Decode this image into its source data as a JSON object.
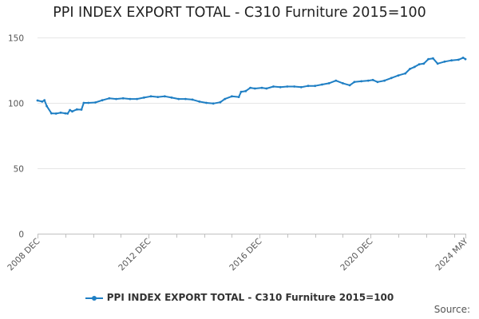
{
  "chart_data": {
    "type": "line",
    "title": "PPI INDEX EXPORT TOTAL - C310 Furniture 2015=100",
    "xlabel": "",
    "ylabel": "",
    "ylim": [
      0,
      150
    ],
    "yticks": [
      0,
      50,
      100,
      150
    ],
    "xlim": [
      "2008-12",
      "2024-05"
    ],
    "xticks": [
      {
        "label": "2008 DEC",
        "date": "2008-12"
      },
      {
        "label": "2012 DEC",
        "date": "2012-12"
      },
      {
        "label": "2016 DEC",
        "date": "2016-12"
      },
      {
        "label": "2020 DEC",
        "date": "2020-12"
      },
      {
        "label": "2024 MAY",
        "date": "2024-05"
      }
    ],
    "grid": {
      "horizontal": true,
      "vertical": false
    },
    "legend_position": "bottom",
    "series": [
      {
        "name": "PPI INDEX EXPORT TOTAL - C310 Furniture 2015=100",
        "color": "#1f7fc4",
        "points": [
          [
            "2008-12",
            101.8
          ],
          [
            "2009-02",
            101.0
          ],
          [
            "2009-03",
            102.0
          ],
          [
            "2009-04",
            97.5
          ],
          [
            "2009-06",
            92.0
          ],
          [
            "2009-08",
            91.8
          ],
          [
            "2009-10",
            92.5
          ],
          [
            "2009-12",
            92.0
          ],
          [
            "2010-01",
            91.8
          ],
          [
            "2010-02",
            94.5
          ],
          [
            "2010-03",
            93.5
          ],
          [
            "2010-05",
            95.0
          ],
          [
            "2010-07",
            94.8
          ],
          [
            "2010-08",
            100.0
          ],
          [
            "2010-10",
            100.0
          ],
          [
            "2011-01",
            100.3
          ],
          [
            "2011-04",
            102.0
          ],
          [
            "2011-07",
            103.5
          ],
          [
            "2011-10",
            103.0
          ],
          [
            "2012-01",
            103.5
          ],
          [
            "2012-04",
            103.0
          ],
          [
            "2012-07",
            103.0
          ],
          [
            "2012-10",
            104.0
          ],
          [
            "2013-01",
            105.0
          ],
          [
            "2013-04",
            104.5
          ],
          [
            "2013-07",
            105.0
          ],
          [
            "2013-10",
            104.0
          ],
          [
            "2014-01",
            103.0
          ],
          [
            "2014-04",
            103.0
          ],
          [
            "2014-07",
            102.5
          ],
          [
            "2014-10",
            101.0
          ],
          [
            "2015-01",
            100.0
          ],
          [
            "2015-04",
            99.5
          ],
          [
            "2015-07",
            100.5
          ],
          [
            "2015-09",
            103.0
          ],
          [
            "2015-12",
            105.0
          ],
          [
            "2016-03",
            104.5
          ],
          [
            "2016-04",
            108.5
          ],
          [
            "2016-06",
            109.0
          ],
          [
            "2016-08",
            111.5
          ],
          [
            "2016-10",
            111.0
          ],
          [
            "2017-01",
            111.5
          ],
          [
            "2017-03",
            111.0
          ],
          [
            "2017-06",
            112.5
          ],
          [
            "2017-09",
            112.0
          ],
          [
            "2017-12",
            112.5
          ],
          [
            "2018-03",
            112.5
          ],
          [
            "2018-06",
            112.0
          ],
          [
            "2018-09",
            113.0
          ],
          [
            "2018-12",
            113.0
          ],
          [
            "2019-03",
            114.0
          ],
          [
            "2019-06",
            115.0
          ],
          [
            "2019-09",
            117.0
          ],
          [
            "2019-12",
            115.0
          ],
          [
            "2020-03",
            113.5
          ],
          [
            "2020-05",
            116.0
          ],
          [
            "2020-08",
            116.5
          ],
          [
            "2020-11",
            117.0
          ],
          [
            "2021-01",
            117.5
          ],
          [
            "2021-03",
            116.0
          ],
          [
            "2021-06",
            117.0
          ],
          [
            "2021-09",
            119.0
          ],
          [
            "2021-12",
            121.0
          ],
          [
            "2022-03",
            122.5
          ],
          [
            "2022-05",
            126.0
          ],
          [
            "2022-07",
            127.5
          ],
          [
            "2022-09",
            129.5
          ],
          [
            "2022-11",
            130.0
          ],
          [
            "2023-01",
            133.5
          ],
          [
            "2023-03",
            134.0
          ],
          [
            "2023-05",
            130.0
          ],
          [
            "2023-08",
            131.5
          ],
          [
            "2023-11",
            132.5
          ],
          [
            "2024-02",
            133.0
          ],
          [
            "2024-04",
            134.5
          ],
          [
            "2024-05",
            133.5
          ]
        ]
      }
    ]
  },
  "legend": {
    "label": "PPI INDEX EXPORT TOTAL - C310 Furniture 2015=100",
    "color": "#1f7fc4"
  },
  "source": {
    "label": "Source:"
  }
}
